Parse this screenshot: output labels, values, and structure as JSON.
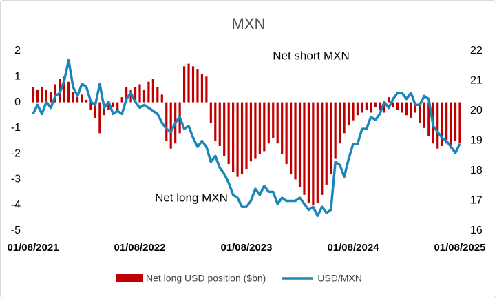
{
  "chart_data": {
    "type": "combo",
    "title": "MXN",
    "categories": [
      "01/08/2021",
      null,
      null,
      null,
      null,
      null,
      null,
      null,
      null,
      null,
      null,
      null,
      null,
      null,
      null,
      null,
      null,
      null,
      null,
      null,
      null,
      null,
      null,
      null,
      "01/08/2022",
      null,
      null,
      null,
      null,
      null,
      null,
      null,
      null,
      null,
      null,
      null,
      null,
      null,
      null,
      null,
      null,
      null,
      null,
      null,
      null,
      null,
      null,
      null,
      "01/08/2023",
      null,
      null,
      null,
      null,
      null,
      null,
      null,
      null,
      null,
      null,
      null,
      null,
      null,
      null,
      null,
      null,
      null,
      null,
      null,
      null,
      null,
      null,
      null,
      "01/08/2024",
      null,
      null,
      null,
      null,
      null,
      null,
      null,
      null,
      null,
      null,
      null,
      null,
      null,
      null,
      null,
      null,
      null,
      null,
      null,
      null,
      null,
      null,
      null,
      "01/08/2025"
    ],
    "series": [
      {
        "name": "Net long USD position ($bn)",
        "type": "bar",
        "color": "#c00000",
        "values": [
          0.6,
          0.5,
          0.6,
          0.5,
          0.4,
          0.7,
          0.9,
          1.0,
          0.8,
          0.4,
          0.2,
          0.3,
          0.1,
          -0.3,
          -0.6,
          -1.2,
          -0.5,
          -0.3,
          -0.2,
          -0.4,
          0.2,
          0.6,
          0.5,
          0.6,
          0.7,
          0.5,
          0.8,
          0.9,
          0.6,
          0.3,
          -1.5,
          -1.8,
          -1.6,
          -1.2,
          1.4,
          1.5,
          1.4,
          1.3,
          1.1,
          1.0,
          -0.8,
          -1.5,
          -1.7,
          -2.1,
          -2.4,
          -2.7,
          -2.9,
          -2.8,
          -2.6,
          -2.3,
          -2.2,
          -2.0,
          -1.9,
          -1.6,
          -1.4,
          -1.6,
          -2.0,
          -2.4,
          -2.8,
          -3.0,
          -3.3,
          -3.6,
          -3.9,
          -4.0,
          -3.9,
          -3.6,
          -3.2,
          -2.8,
          -2.2,
          -1.6,
          -1.2,
          -0.9,
          -0.7,
          -0.5,
          -0.4,
          -0.3,
          -0.4,
          -0.2,
          -0.3,
          -0.4,
          0.2,
          -0.2,
          -0.3,
          -0.4,
          -0.5,
          -0.6,
          -0.4,
          -0.8,
          -1.0,
          -1.3,
          -1.6,
          -1.8,
          -1.7,
          -1.6,
          -1.8,
          -1.5,
          -1.6
        ]
      },
      {
        "name": "USD/MXN",
        "type": "line",
        "axis": "y2",
        "color": "#1d86b8",
        "values": [
          19.9,
          20.2,
          19.9,
          20.3,
          20.1,
          20.5,
          20.6,
          21.0,
          21.7,
          20.8,
          20.5,
          20.9,
          20.8,
          20.3,
          20.2,
          20.9,
          20.1,
          20.3,
          19.9,
          20.0,
          19.9,
          20.4,
          20.6,
          20.3,
          20.1,
          20.2,
          20.1,
          20.0,
          19.9,
          19.6,
          19.4,
          19.3,
          19.6,
          19.8,
          19.4,
          19.5,
          19.1,
          18.8,
          19.0,
          18.8,
          18.3,
          18.5,
          18.1,
          17.9,
          17.6,
          17.2,
          17.1,
          16.8,
          16.8,
          17.0,
          17.4,
          17.2,
          17.5,
          17.3,
          17.3,
          16.9,
          17.1,
          17.0,
          17.0,
          17.0,
          17.1,
          16.9,
          16.7,
          16.8,
          16.5,
          16.8,
          16.6,
          16.7,
          18.3,
          18.2,
          17.8,
          18.4,
          18.9,
          18.9,
          19.4,
          19.4,
          19.8,
          19.7,
          19.9,
          20.3,
          20.1,
          20.4,
          20.6,
          20.6,
          20.4,
          20.6,
          20.2,
          20.2,
          20.5,
          20.4,
          19.5,
          19.3,
          19.1,
          19.0,
          18.8,
          18.6,
          18.9
        ]
      }
    ],
    "ylim": [
      -5,
      2
    ],
    "yticks": [
      -5,
      -4,
      -3,
      -2,
      -1,
      0,
      1,
      2
    ],
    "y2lim": [
      16,
      22
    ],
    "y2ticks": [
      16,
      17,
      18,
      19,
      20,
      21,
      22
    ],
    "annotations": [
      "Net short MXN",
      "Net long MXN"
    ],
    "legend": "bottom"
  }
}
